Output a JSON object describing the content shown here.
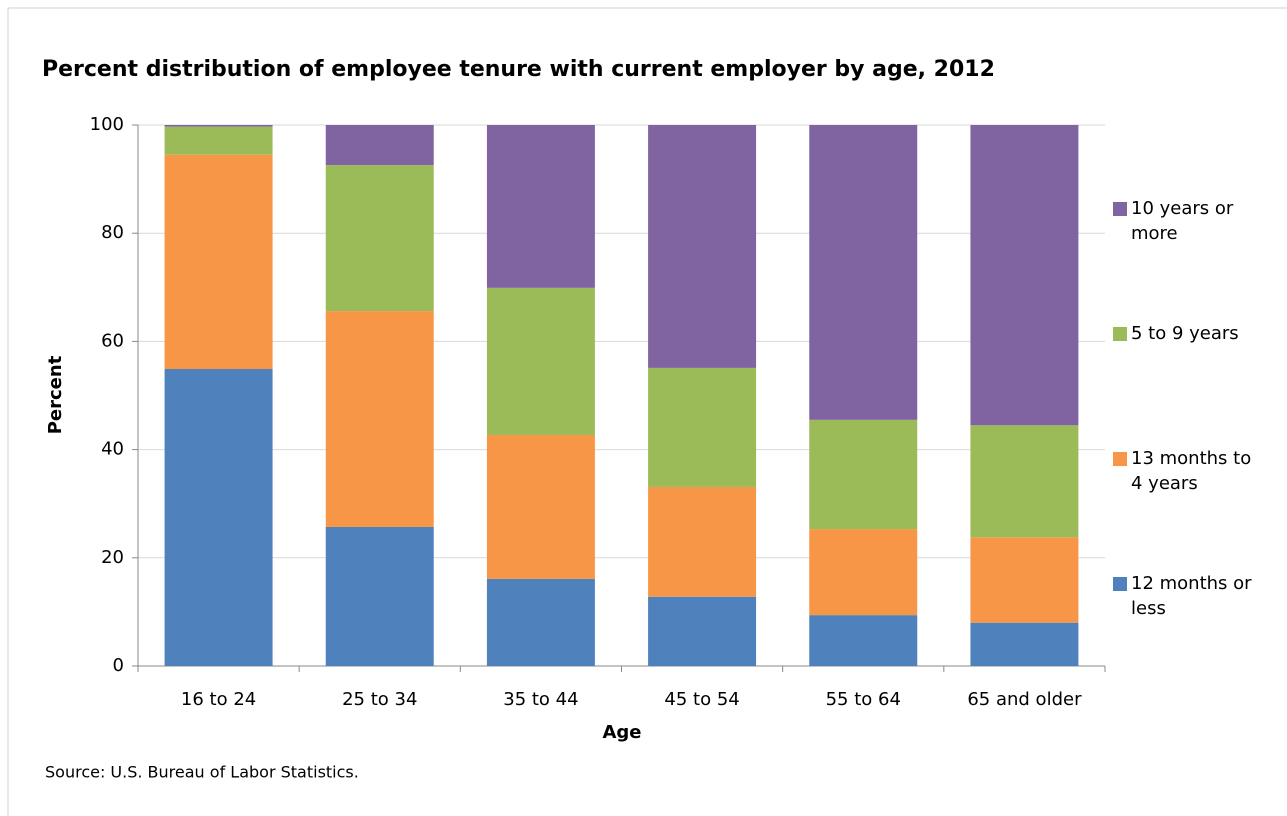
{
  "chart_data": {
    "type": "stacked_bar",
    "title": "Percent distribution of employee tenure with current employer by age, 2012",
    "x_label": "Age",
    "y_label": "Percent",
    "source": "Source: U.S. Bureau of Labor Statistics.",
    "categories": [
      "16 to 24",
      "25 to 34",
      "35 to 44",
      "45 to 54",
      "55 to 64",
      "65 and older"
    ],
    "series": [
      {
        "name": "12 months or less",
        "color": "#4f81bd",
        "values": [
          54.9,
          25.7,
          16.1,
          12.8,
          9.4,
          8.0
        ]
      },
      {
        "name": "13 months to 4 years",
        "color": "#f79646",
        "values": [
          39.6,
          39.9,
          26.6,
          20.3,
          15.9,
          15.8
        ]
      },
      {
        "name": "5 to 9 years",
        "color": "#9bbb59",
        "values": [
          5.2,
          27.0,
          27.2,
          22.0,
          20.2,
          20.7
        ]
      },
      {
        "name": "10 years or more",
        "color": "#8064a2",
        "values": [
          0.3,
          7.4,
          30.1,
          44.9,
          54.5,
          55.5
        ]
      }
    ],
    "ylim": [
      0,
      100
    ],
    "yticks": [
      0,
      20,
      40,
      60,
      80,
      100
    ],
    "grid": true,
    "legend": "right"
  }
}
